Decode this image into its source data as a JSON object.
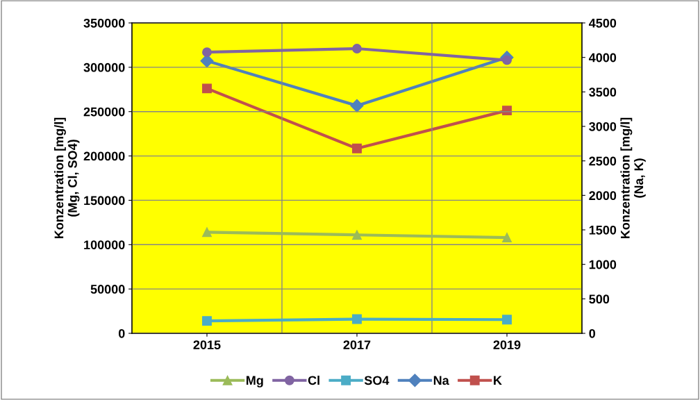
{
  "chart_data": {
    "type": "line",
    "categories": [
      "2015",
      "2017",
      "2019"
    ],
    "ylabel": "Konzentration [mg/l]\n(Mg, Cl, SO4)",
    "y2label": "Konzentration [mg/l]\n(Na, K)",
    "ylim": [
      0,
      350000
    ],
    "yticks": [
      0,
      50000,
      100000,
      150000,
      200000,
      250000,
      300000,
      350000
    ],
    "y2lim": [
      0,
      4500
    ],
    "y2ticks": [
      0,
      500,
      1000,
      1500,
      2000,
      2500,
      3000,
      3500,
      4000,
      4500
    ],
    "grid": true,
    "legend": "bottom",
    "line_style": "solid",
    "series": [
      {
        "name": "Mg",
        "color": "#9bbb59",
        "marker": "triangle",
        "values": [
          114000,
          111000,
          108000
        ]
      },
      {
        "name": "Cl",
        "color": "#8064a2",
        "marker": "circle",
        "values": [
          317000,
          321000,
          308000
        ]
      },
      {
        "name": "SO4",
        "color": "#4bacc6",
        "marker": "square",
        "values": [
          14000,
          16000,
          15500
        ]
      },
      {
        "name": "Na",
        "color": "#4f81bd",
        "marker": "diamond",
        "axis": "y2",
        "values": [
          3950,
          3300,
          4000
        ]
      },
      {
        "name": "K",
        "color": "#c0504d",
        "marker": "square",
        "axis": "y2",
        "values": [
          3550,
          2680,
          3230
        ]
      }
    ]
  }
}
